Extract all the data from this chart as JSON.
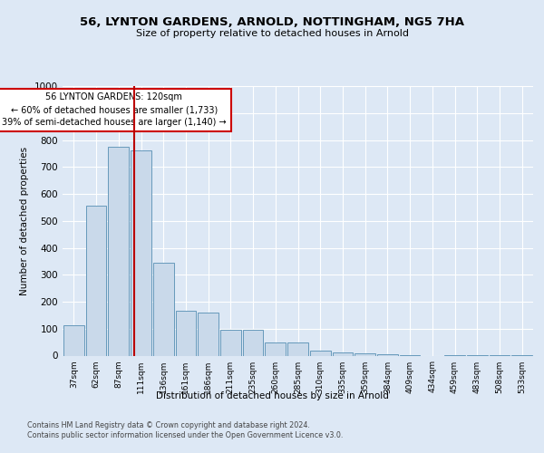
{
  "title1": "56, LYNTON GARDENS, ARNOLD, NOTTINGHAM, NG5 7HA",
  "title2": "Size of property relative to detached houses in Arnold",
  "xlabel": "Distribution of detached houses by size in Arnold",
  "ylabel": "Number of detached properties",
  "bar_labels": [
    "37sqm",
    "62sqm",
    "87sqm",
    "111sqm",
    "136sqm",
    "161sqm",
    "186sqm",
    "211sqm",
    "235sqm",
    "260sqm",
    "285sqm",
    "310sqm",
    "335sqm",
    "359sqm",
    "384sqm",
    "409sqm",
    "434sqm",
    "459sqm",
    "483sqm",
    "508sqm",
    "533sqm"
  ],
  "bar_values": [
    112,
    555,
    775,
    762,
    345,
    165,
    160,
    95,
    95,
    50,
    50,
    17,
    13,
    10,
    5,
    2,
    0,
    2,
    2,
    2,
    2
  ],
  "bar_color": "#c9d9ea",
  "bar_edge_color": "#6699bb",
  "red_line_x": 2.7,
  "red_line_color": "#bb0000",
  "annotation_lines": [
    "56 LYNTON GARDENS: 120sqm",
    "← 60% of detached houses are smaller (1,733)",
    "39% of semi-detached houses are larger (1,140) →"
  ],
  "annotation_box_facecolor": "#ffffff",
  "annotation_box_edgecolor": "#cc0000",
  "ylim": [
    0,
    1000
  ],
  "yticks": [
    0,
    100,
    200,
    300,
    400,
    500,
    600,
    700,
    800,
    900,
    1000
  ],
  "bg_color": "#dde8f5",
  "grid_color": "#ffffff",
  "footer1": "Contains HM Land Registry data © Crown copyright and database right 2024.",
  "footer2": "Contains public sector information licensed under the Open Government Licence v3.0."
}
